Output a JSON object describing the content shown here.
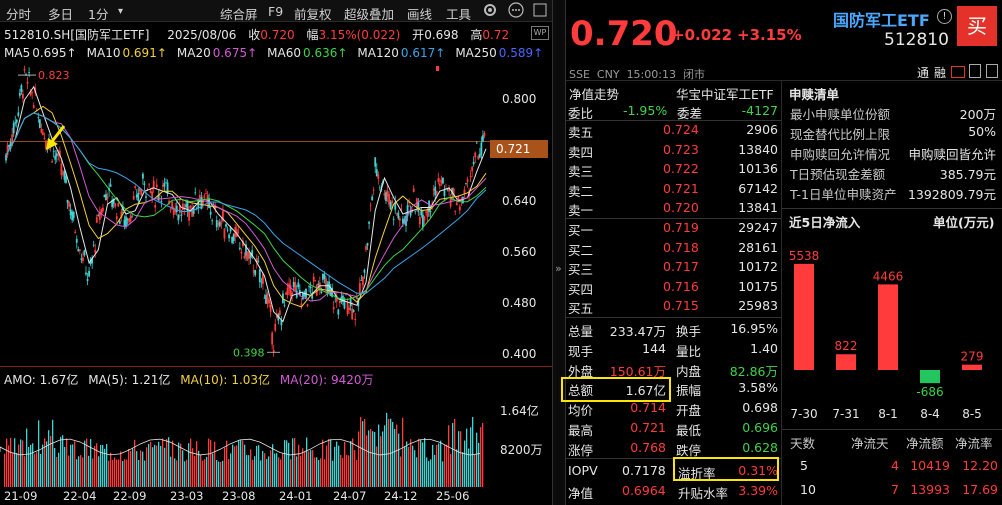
{
  "toolbar": {
    "items": [
      "分时",
      "多日",
      "1分",
      "▾",
      "综合屏",
      "F9",
      "前复权",
      "超级叠加",
      "画线",
      "工具"
    ],
    "icon_settings": "gear-icon",
    "icon_more": "ellipsis-icon"
  },
  "chart_info": {
    "code_name": "512810.SH[国防军工ETF]",
    "date": "2025/08/06",
    "close_label": "收",
    "close": "0.720",
    "change_label": "幅",
    "change": "3.15%(0.022)",
    "open_label": "开",
    "open": "0.698",
    "high_label": "高",
    "high": "0.72",
    "wp_badge": "WP"
  },
  "ma_line": [
    {
      "label": "MA5",
      "value": "0.695↑",
      "color": "#e6e6e6"
    },
    {
      "label": "MA10",
      "value": "0.691↑",
      "color": "#f2d13a"
    },
    {
      "label": "MA20",
      "value": "0.675↑",
      "color": "#d35ad3"
    },
    {
      "label": "MA60",
      "value": "0.636↑",
      "color": "#3fd34a"
    },
    {
      "label": "MA120",
      "value": "0.617↑",
      "color": "#3aa4e8"
    },
    {
      "label": "MA250",
      "value": "0.589↑",
      "color": "#4a66ff"
    }
  ],
  "price_axis": [
    "0.800",
    "0.720",
    "0.640",
    "0.560",
    "0.480",
    "0.400"
  ],
  "price_marker": "0.721",
  "annotations": {
    "high": "0.823",
    "low": "0.398"
  },
  "volume_info": {
    "amo_label": "AMO:",
    "amo": "1.67亿",
    "ma5_label": "MA(5):",
    "ma5": "1.21亿",
    "ma10_label": "MA(10):",
    "ma10": "1.03亿",
    "ma20_label": "MA(20):",
    "ma20": "9420万"
  },
  "volume_axis": [
    "1.64亿",
    "8200万"
  ],
  "time_axis": [
    "21-09",
    "22-04",
    "22-09",
    "23-03",
    "23-08",
    "24-01",
    "24-07",
    "24-12",
    "25-06"
  ],
  "quote": {
    "price": "0.720",
    "change": "+0.022",
    "change_pct": "+3.15%",
    "name": "国防军工ETF",
    "code": "512810",
    "sell_button": "买",
    "exchange": "SSE",
    "currency": "CNY",
    "time": "15:00:13",
    "status": "闭市",
    "sub_tabs": [
      "通",
      "融"
    ]
  },
  "panel_titles": {
    "nav": "净值走势",
    "index": "华宝中证军工ETF"
  },
  "order_book": {
    "weibi_label": "委比",
    "weibi": "-1.95%",
    "weicha_label": "委差",
    "weicha": "-4127",
    "asks": [
      {
        "label": "卖五",
        "price": "0.724",
        "vol": "2906"
      },
      {
        "label": "卖四",
        "price": "0.723",
        "vol": "13840"
      },
      {
        "label": "卖三",
        "price": "0.722",
        "vol": "10136"
      },
      {
        "label": "卖二",
        "price": "0.721",
        "vol": "67142"
      },
      {
        "label": "卖一",
        "price": "0.720",
        "vol": "13841"
      }
    ],
    "bids": [
      {
        "label": "买一",
        "price": "0.719",
        "vol": "29247"
      },
      {
        "label": "买二",
        "price": "0.718",
        "vol": "28161"
      },
      {
        "label": "买三",
        "price": "0.717",
        "vol": "10172"
      },
      {
        "label": "买四",
        "price": "0.716",
        "vol": "10175"
      },
      {
        "label": "买五",
        "price": "0.715",
        "vol": "25983"
      }
    ]
  },
  "stats": [
    {
      "l1": "总量",
      "v1": "233.47万",
      "c1": "white",
      "l2": "换手",
      "v2": "16.95%",
      "c2": "white"
    },
    {
      "l1": "现手",
      "v1": "144",
      "c1": "white",
      "l2": "量比",
      "v2": "1.40",
      "c2": "white"
    },
    {
      "l1": "外盘",
      "v1": "150.61万",
      "c1": "red",
      "l2": "内盘",
      "v2": "82.86万",
      "c2": "green"
    },
    {
      "l1": "总额",
      "v1": "1.67亿",
      "c1": "white",
      "l2": "振幅",
      "v2": "3.58%",
      "c2": "white"
    },
    {
      "l1": "均价",
      "v1": "0.714",
      "c1": "red",
      "l2": "开盘",
      "v2": "0.698",
      "c2": "white"
    },
    {
      "l1": "最高",
      "v1": "0.721",
      "c1": "red",
      "l2": "最低",
      "v2": "0.696",
      "c2": "green"
    },
    {
      "l1": "涨停",
      "v1": "0.768",
      "c1": "red",
      "l2": "跌停",
      "v2": "0.628",
      "c2": "green"
    }
  ],
  "iopv": {
    "l1": "IOPV",
    "v1": "0.7178",
    "l2": "溢折率",
    "v2": "0.31%",
    "l3": "净值",
    "v3": "0.6964",
    "l4": "升贴水率",
    "v4": "3.39%"
  },
  "subscribe": {
    "title": "申赎清单",
    "rows": [
      {
        "label": "最小申赎单位份额",
        "value": "200万"
      },
      {
        "label": "现金替代比例上限",
        "value": "50%"
      },
      {
        "label": "申购赎回允许情况",
        "value": "申购赎回皆允许"
      },
      {
        "label": "T日预估现金差额",
        "value": "385.79元"
      },
      {
        "label": "T-1日单位申赎资产",
        "value": "1392809.79元"
      }
    ]
  },
  "flow": {
    "title": "近5日净流入",
    "unit": "单位(万元)",
    "chart_data": {
      "type": "bar",
      "categories": [
        "7-30",
        "7-31",
        "8-1",
        "8-4",
        "8-5"
      ],
      "values": [
        5538,
        822,
        4466,
        -686,
        279
      ],
      "ylim": [
        -1000,
        6000
      ]
    }
  },
  "flow_table": {
    "headers": [
      "天数",
      "净流天",
      "净流额",
      "净流率"
    ],
    "rows": [
      [
        "5",
        "4",
        "10419",
        "12.20"
      ],
      [
        "10",
        "7",
        "13993",
        "17.69"
      ]
    ]
  }
}
